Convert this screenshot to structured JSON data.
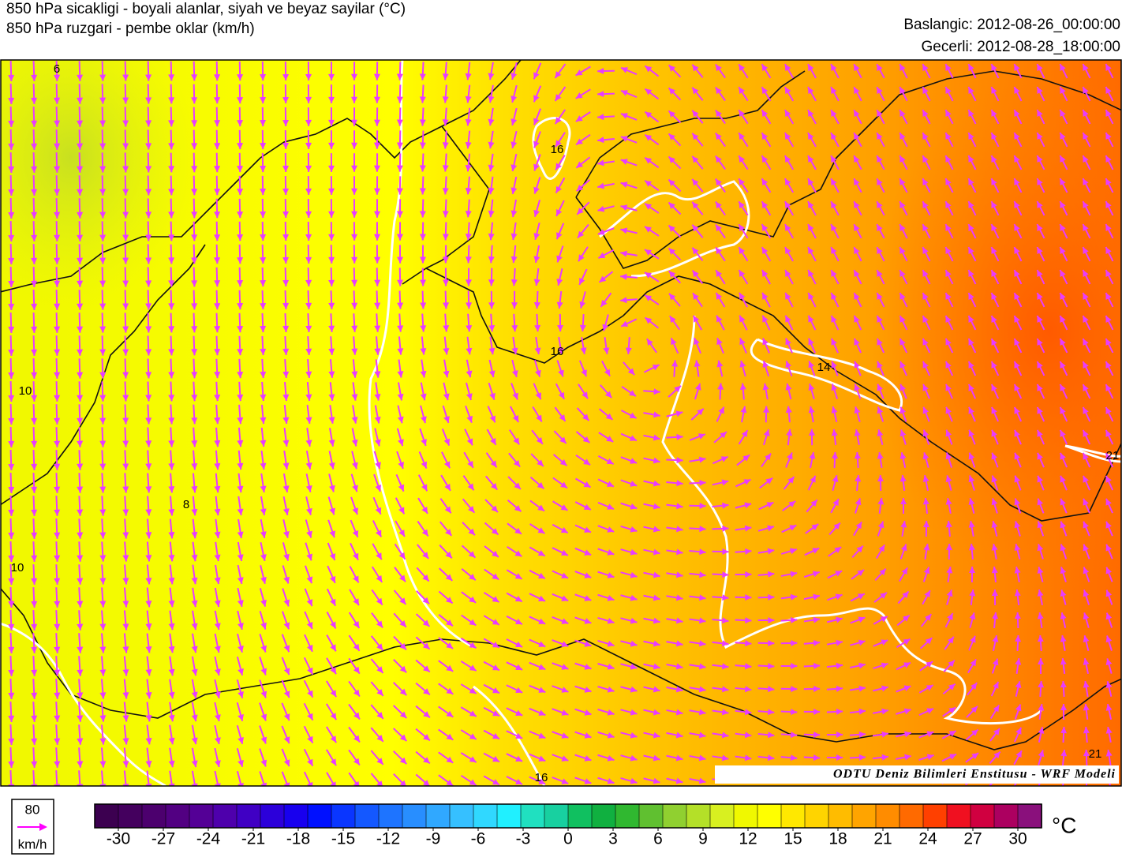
{
  "header": {
    "title_line1": "850 hPa  sicakligi - boyali alanlar, siyah ve beyaz sayilar   (°C)",
    "title_line2": "850 hPa  ruzgari - pembe oklar   (km/h)",
    "start": "Baslangic: 2012-08-26_00:00:00",
    "valid": "Gecerli: 2012-08-28_18:00:00"
  },
  "map": {
    "contour_labels": [
      "6",
      "10",
      "8",
      "10",
      "16",
      "16",
      "14",
      "21",
      "16",
      "21"
    ],
    "credit": "ODTU Deniz Bilimleri Enstitusu - WRF Modeli"
  },
  "wind_legend": {
    "speed": "80",
    "unit": "km/h"
  },
  "colorbar": {
    "range": [
      -30,
      30
    ],
    "ticks": [
      -30,
      -27,
      -24,
      -21,
      -18,
      -15,
      -12,
      -9,
      -6,
      -3,
      0,
      3,
      6,
      9,
      12,
      15,
      18,
      21,
      24,
      27,
      30
    ],
    "unit": "°C",
    "colors": [
      "#3c0050",
      "#44005e",
      "#4c006e",
      "#520082",
      "#540096",
      "#4e00ac",
      "#4000c4",
      "#2c00da",
      "#1800ee",
      "#0010ff",
      "#0a36ff",
      "#1458ff",
      "#1e74ff",
      "#288eff",
      "#30a8ff",
      "#36c0ff",
      "#30d8ff",
      "#20f0ff",
      "#20e0c0",
      "#18d0a0",
      "#10c060",
      "#10b040",
      "#30b830",
      "#60c030",
      "#90d030",
      "#b4e028",
      "#d8f020",
      "#f0f800",
      "#ffff00",
      "#ffe800",
      "#ffd400",
      "#ffbc00",
      "#ffa400",
      "#ff8c00",
      "#ff6a00",
      "#ff4000",
      "#f01020",
      "#d00040",
      "#ac0060",
      "#8a107c"
    ]
  }
}
